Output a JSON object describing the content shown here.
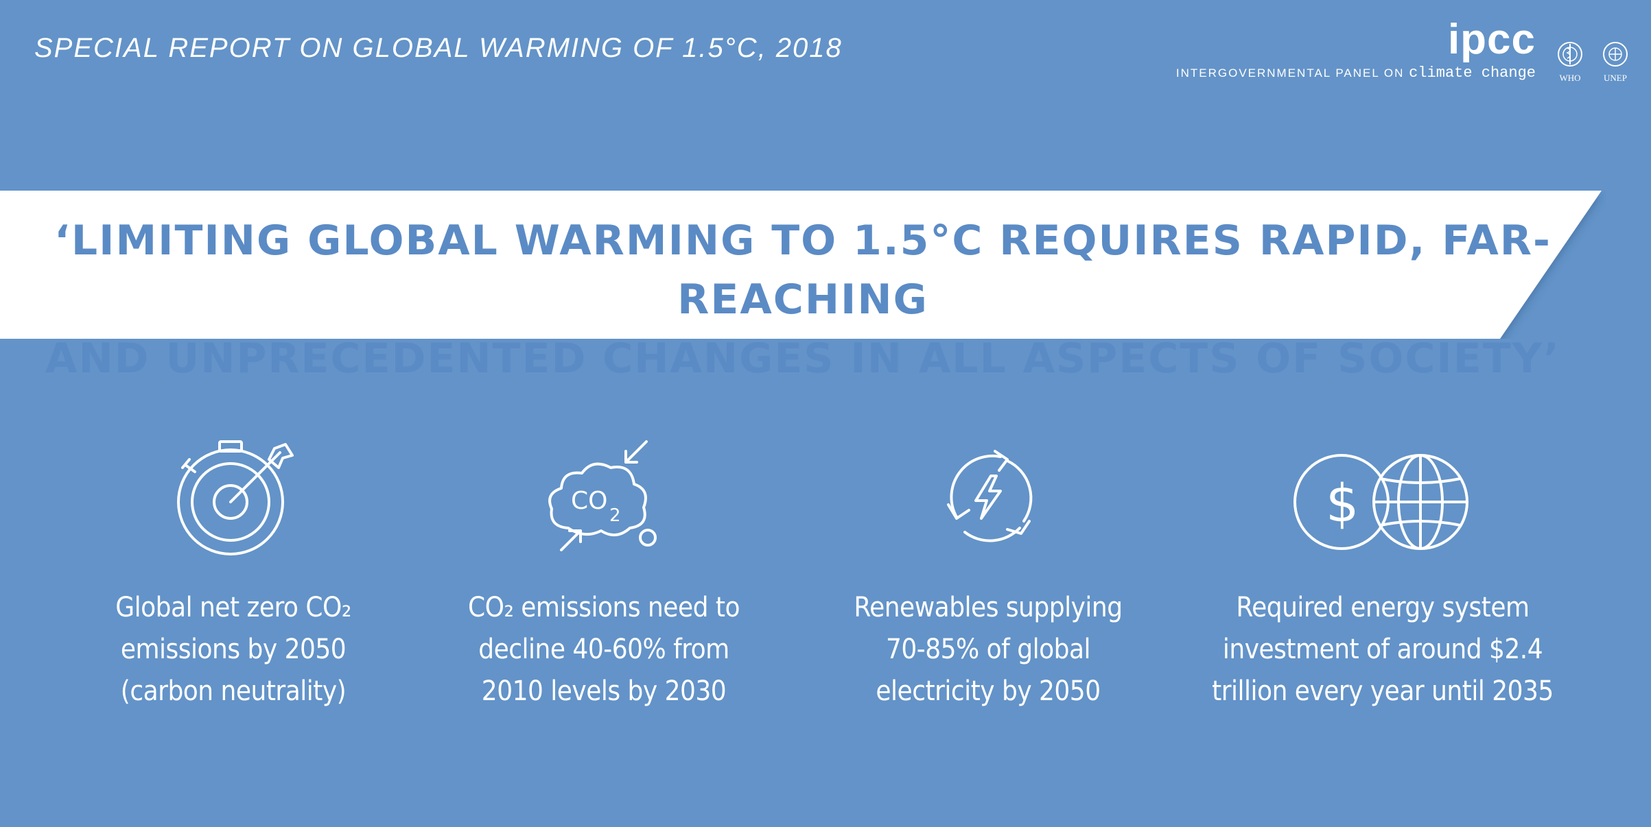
{
  "header": {
    "report_title": "SPECIAL REPORT ON GLOBAL WARMING OF 1.5°C, 2018",
    "logo": {
      "name": "ipcc",
      "tagline_prefix": "INTERGOVERNMENTAL PANEL ON",
      "tagline_suffix": "climate change"
    },
    "partners": [
      "WHO",
      "UNEP"
    ]
  },
  "banner": {
    "quote_line_1": "‘LIMITING GLOBAL WARMING TO 1.5°C REQUIRES RAPID, FAR-REACHING",
    "quote_line_2": "AND UNPRECEDENTED CHANGES IN ALL ASPECTS OF SOCIETY’"
  },
  "cards": [
    {
      "icon": "stopwatch-target-icon",
      "lines": [
        "Global net zero CO₂",
        "emissions by 2050",
        "(carbon neutrality)"
      ]
    },
    {
      "icon": "co2-cloud-icon",
      "icon_text": "CO",
      "icon_sub": "2",
      "lines": [
        "CO₂ emissions need to",
        "decline 40-60% from",
        "2010 levels by 2030"
      ]
    },
    {
      "icon": "renewable-energy-cycle-icon",
      "lines": [
        "Renewables supplying",
        "70-85% of global",
        "electricity by 2050"
      ]
    },
    {
      "icon": "dollar-globe-icon",
      "lines": [
        "Required energy system",
        "investment of around $2.4",
        "trillion every year until 2035"
      ]
    }
  ],
  "colors": {
    "background": "#6393c8",
    "banner": "#ffffff",
    "banner_text": "#5b8bc5",
    "text": "#ffffff"
  }
}
